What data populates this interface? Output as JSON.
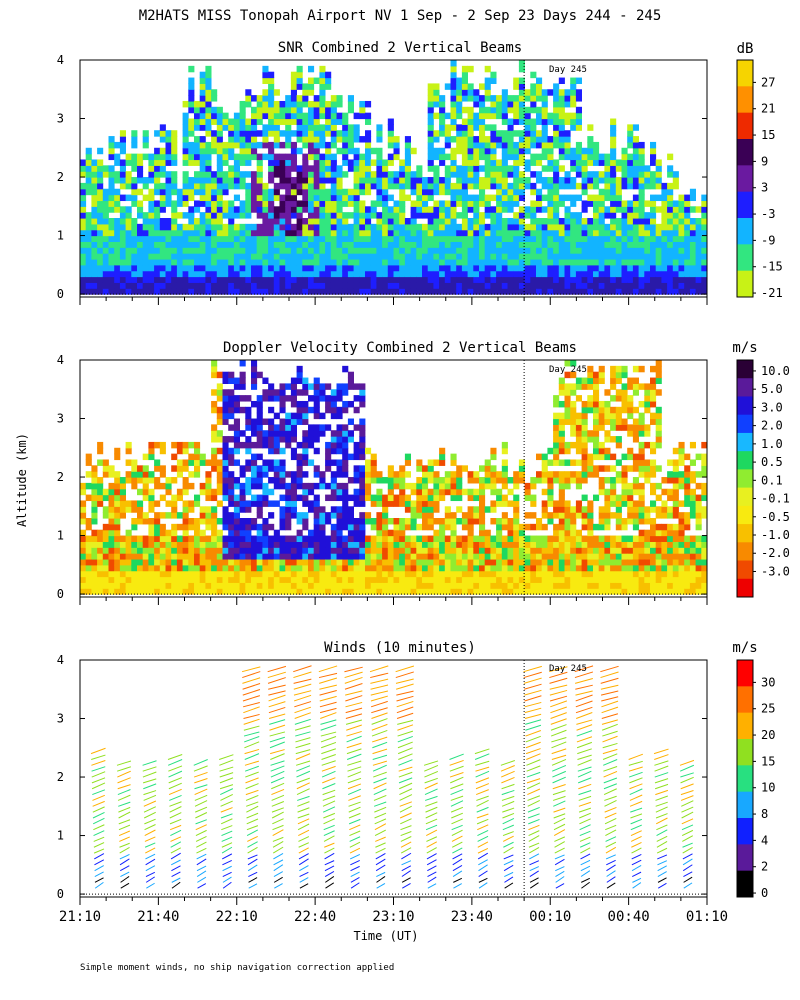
{
  "figure_title": "M2HATS MISS Tonopah Airport NV   1 Sep -  2 Sep 23 Days 244 - 245",
  "y_axis_label": "Altitude (km)",
  "x_axis_label": "Time (UT)",
  "footnote": "Simple moment winds, no ship navigation correction applied",
  "day_marker_label": "Day 245",
  "chart_data": [
    {
      "type": "heatmap",
      "title": "SNR Combined 2 Vertical Beams",
      "colorbar_unit": "dB",
      "colorbar_labels": [
        "27",
        "21",
        "15",
        "9",
        "3",
        "-3",
        "-9",
        "-15",
        "-21"
      ],
      "colorbar_colors": [
        "#f6d400",
        "#ff9000",
        "#ee2a00",
        "#3a0055",
        "#6a1aa0",
        "#1e1eff",
        "#12b4ff",
        "#32e680",
        "#c8f216"
      ],
      "x_range": [
        "21:10",
        "01:10"
      ],
      "y_range_km": [
        0,
        4
      ],
      "day_boundary": "00:00"
    },
    {
      "type": "heatmap",
      "title": "Doppler Velocity Combined 2 Vertical Beams",
      "colorbar_unit": "m/s",
      "colorbar_labels": [
        "10.0",
        "5.0",
        "3.0",
        "2.0",
        "1.0",
        "0.5",
        "0.1",
        "-0.1",
        "-0.5",
        "-1.0",
        "-2.0",
        "-3.0"
      ],
      "colorbar_colors": [
        "#2a0035",
        "#5a1a9a",
        "#2010d8",
        "#1040ff",
        "#18b8ff",
        "#1ed860",
        "#90ec30",
        "#e8f020",
        "#f8ea10",
        "#f8c000",
        "#f88a00",
        "#f04a00",
        "#ee0000"
      ],
      "x_range": [
        "21:10",
        "01:10"
      ],
      "y_range_km": [
        0,
        4
      ],
      "day_boundary": "00:00"
    },
    {
      "type": "scatter",
      "title": "Winds (10 minutes)",
      "colorbar_unit": "m/s",
      "colorbar_labels": [
        "30",
        "25",
        "20",
        "15",
        "10",
        "8",
        "4",
        "2",
        "0"
      ],
      "colorbar_colors": [
        "#ff0000",
        "#ff7000",
        "#ffb000",
        "#90e020",
        "#28e080",
        "#18a8ff",
        "#1020ff",
        "#5a1a9a",
        "#000000"
      ],
      "x_range": [
        "21:10",
        "01:10"
      ],
      "y_range_km": [
        0,
        4
      ],
      "day_boundary": "00:00"
    }
  ],
  "x_ticks": [
    "21:10",
    "21:40",
    "22:10",
    "22:40",
    "23:10",
    "23:40",
    "00:10",
    "00:40",
    "01:10"
  ],
  "y_ticks": [
    "0",
    "1",
    "2",
    "3",
    "4"
  ]
}
